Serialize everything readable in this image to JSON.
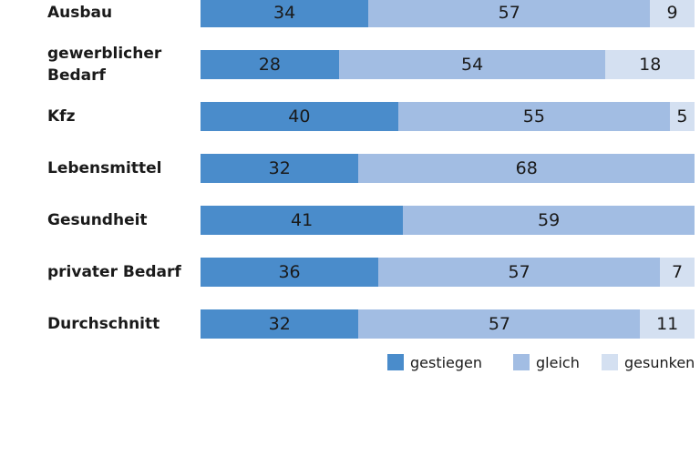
{
  "chart_data": {
    "type": "stacked-bar",
    "orientation": "horizontal",
    "categories": [
      "Ausbau",
      "gewerblicher Bedarf",
      "Kfz",
      "Lebensmittel",
      "Gesundheit",
      "privater Bedarf",
      "Durchschnitt"
    ],
    "series": [
      {
        "name": "gestiegen",
        "color": "#4a8ccb",
        "values": [
          34,
          28,
          40,
          32,
          41,
          36,
          32
        ]
      },
      {
        "name": "gleich",
        "color": "#a2bde3",
        "values": [
          57,
          54,
          55,
          68,
          59,
          57,
          57
        ]
      },
      {
        "name": "gesunken",
        "color": "#d4e0f1",
        "values": [
          9,
          18,
          5,
          null,
          null,
          7,
          11
        ]
      }
    ],
    "xlim": [
      0,
      100
    ]
  }
}
